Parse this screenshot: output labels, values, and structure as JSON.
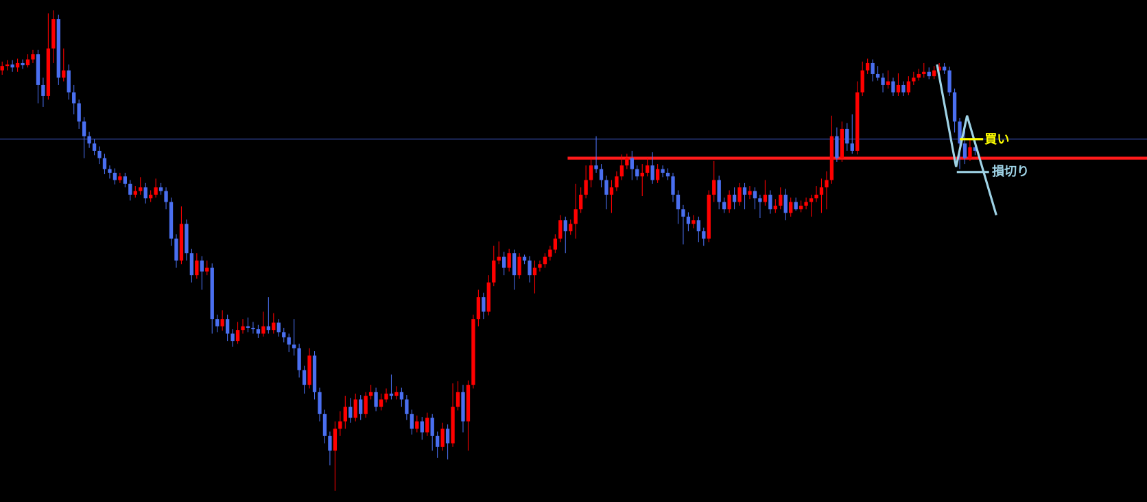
{
  "chart_data": {
    "type": "candlestick",
    "up_color": "#ff0000",
    "down_color": "#4a6ff0",
    "ylim": [
      0,
      686
    ],
    "hlines": [
      {
        "value": 496,
        "color": "#3b4fb8"
      },
      {
        "value": 470,
        "color": "#ff1a1a"
      }
    ],
    "annotations": [
      {
        "text": "買い",
        "color": "#ffff00"
      },
      {
        "text": "損切り",
        "color": "#9fd3e6"
      }
    ],
    "candles": [
      [
        590,
        602,
        584,
        596
      ],
      [
        596,
        604,
        590,
        598
      ],
      [
        598,
        604,
        588,
        594
      ],
      [
        594,
        606,
        588,
        600
      ],
      [
        600,
        605,
        592,
        597
      ],
      [
        597,
        612,
        594,
        605
      ],
      [
        605,
        618,
        600,
        612
      ],
      [
        612,
        618,
        545,
        570
      ],
      [
        570,
        580,
        540,
        555
      ],
      [
        555,
        668,
        550,
        620
      ],
      [
        620,
        672,
        600,
        660
      ],
      [
        660,
        666,
        570,
        580
      ],
      [
        580,
        620,
        575,
        590
      ],
      [
        590,
        598,
        550,
        560
      ],
      [
        560,
        570,
        530,
        545
      ],
      [
        545,
        550,
        510,
        520
      ],
      [
        520,
        526,
        470,
        500
      ],
      [
        500,
        506,
        484,
        490
      ],
      [
        490,
        496,
        474,
        480
      ],
      [
        480,
        486,
        462,
        470
      ],
      [
        470,
        476,
        448,
        455
      ],
      [
        455,
        460,
        442,
        450
      ],
      [
        450,
        456,
        434,
        440
      ],
      [
        440,
        450,
        436,
        445
      ],
      [
        445,
        450,
        430,
        435
      ],
      [
        435,
        440,
        412,
        420
      ],
      [
        420,
        432,
        416,
        425
      ],
      [
        425,
        444,
        420,
        430
      ],
      [
        430,
        436,
        408,
        415
      ],
      [
        415,
        426,
        410,
        420
      ],
      [
        420,
        442,
        416,
        430
      ],
      [
        430,
        436,
        420,
        425
      ],
      [
        425,
        430,
        400,
        410
      ],
      [
        410,
        416,
        350,
        360
      ],
      [
        360,
        366,
        320,
        330
      ],
      [
        330,
        404,
        325,
        380
      ],
      [
        380,
        386,
        330,
        340
      ],
      [
        340,
        346,
        300,
        310
      ],
      [
        310,
        340,
        305,
        330
      ],
      [
        330,
        336,
        290,
        315
      ],
      [
        315,
        330,
        310,
        320
      ],
      [
        320,
        326,
        230,
        250
      ],
      [
        250,
        256,
        232,
        240
      ],
      [
        240,
        262,
        234,
        250
      ],
      [
        250,
        256,
        220,
        230
      ],
      [
        230,
        236,
        212,
        220
      ],
      [
        220,
        246,
        216,
        235
      ],
      [
        235,
        250,
        230,
        240
      ],
      [
        240,
        252,
        232,
        238
      ],
      [
        238,
        246,
        230,
        236
      ],
      [
        236,
        242,
        224,
        230
      ],
      [
        230,
        260,
        226,
        240
      ],
      [
        240,
        280,
        230,
        235
      ],
      [
        235,
        258,
        230,
        245
      ],
      [
        245,
        250,
        226,
        232
      ],
      [
        232,
        238,
        218,
        225
      ],
      [
        225,
        230,
        205,
        215
      ],
      [
        215,
        250,
        200,
        210
      ],
      [
        210,
        216,
        170,
        180
      ],
      [
        180,
        186,
        148,
        160
      ],
      [
        160,
        210,
        155,
        200
      ],
      [
        200,
        206,
        140,
        150
      ],
      [
        150,
        156,
        110,
        120
      ],
      [
        120,
        126,
        80,
        90
      ],
      [
        90,
        96,
        50,
        70
      ],
      [
        70,
        110,
        15,
        100
      ],
      [
        100,
        124,
        90,
        110
      ],
      [
        110,
        145,
        100,
        130
      ],
      [
        130,
        142,
        108,
        115
      ],
      [
        115,
        148,
        110,
        140
      ],
      [
        140,
        146,
        112,
        120
      ],
      [
        120,
        150,
        115,
        145
      ],
      [
        145,
        160,
        140,
        150
      ],
      [
        150,
        156,
        124,
        130
      ],
      [
        130,
        148,
        125,
        140
      ],
      [
        140,
        155,
        136,
        148
      ],
      [
        148,
        174,
        140,
        145
      ],
      [
        145,
        158,
        140,
        150
      ],
      [
        150,
        156,
        130,
        140
      ],
      [
        140,
        146,
        112,
        120
      ],
      [
        120,
        126,
        92,
        100
      ],
      [
        100,
        118,
        95,
        110
      ],
      [
        110,
        116,
        85,
        95
      ],
      [
        95,
        122,
        90,
        115
      ],
      [
        115,
        120,
        70,
        90
      ],
      [
        90,
        96,
        60,
        75
      ],
      [
        75,
        108,
        70,
        100
      ],
      [
        100,
        106,
        58,
        80
      ],
      [
        80,
        162,
        75,
        130
      ],
      [
        130,
        165,
        125,
        150
      ],
      [
        150,
        160,
        95,
        110
      ],
      [
        110,
        166,
        70,
        160
      ],
      [
        160,
        256,
        155,
        250
      ],
      [
        250,
        290,
        240,
        280
      ],
      [
        280,
        286,
        250,
        260
      ],
      [
        260,
        310,
        255,
        300
      ],
      [
        300,
        350,
        295,
        330
      ],
      [
        330,
        356,
        325,
        335
      ],
      [
        335,
        342,
        310,
        320
      ],
      [
        320,
        346,
        315,
        340
      ],
      [
        340,
        345,
        290,
        310
      ],
      [
        310,
        340,
        305,
        335
      ],
      [
        335,
        338,
        325,
        330
      ],
      [
        330,
        336,
        300,
        310
      ],
      [
        310,
        330,
        285,
        320
      ],
      [
        320,
        330,
        315,
        325
      ],
      [
        325,
        340,
        320,
        335
      ],
      [
        335,
        350,
        330,
        345
      ],
      [
        345,
        366,
        340,
        360
      ],
      [
        360,
        392,
        355,
        385
      ],
      [
        385,
        390,
        340,
        370
      ],
      [
        370,
        386,
        365,
        380
      ],
      [
        380,
        435,
        360,
        400
      ],
      [
        400,
        430,
        395,
        420
      ],
      [
        420,
        460,
        415,
        440
      ],
      [
        440,
        470,
        430,
        460
      ],
      [
        460,
        500,
        450,
        455
      ],
      [
        455,
        462,
        430,
        440
      ],
      [
        440,
        446,
        400,
        420
      ],
      [
        420,
        440,
        395,
        430
      ],
      [
        430,
        452,
        425,
        445
      ],
      [
        445,
        475,
        440,
        460
      ],
      [
        460,
        476,
        455,
        470
      ],
      [
        470,
        480,
        440,
        455
      ],
      [
        455,
        460,
        440,
        445
      ],
      [
        445,
        462,
        418,
        450
      ],
      [
        450,
        470,
        445,
        460
      ],
      [
        460,
        478,
        435,
        440
      ],
      [
        440,
        462,
        436,
        455
      ],
      [
        455,
        460,
        444,
        450
      ],
      [
        450,
        456,
        440,
        445
      ],
      [
        445,
        450,
        410,
        420
      ],
      [
        420,
        426,
        380,
        400
      ],
      [
        400,
        406,
        352,
        390
      ],
      [
        390,
        396,
        370,
        380
      ],
      [
        380,
        392,
        374,
        385
      ],
      [
        385,
        390,
        355,
        370
      ],
      [
        370,
        375,
        350,
        360
      ],
      [
        360,
        426,
        355,
        420
      ],
      [
        420,
        466,
        410,
        440
      ],
      [
        440,
        446,
        400,
        410
      ],
      [
        410,
        416,
        395,
        400
      ],
      [
        400,
        426,
        395,
        420
      ],
      [
        420,
        430,
        400,
        410
      ],
      [
        410,
        436,
        405,
        430
      ],
      [
        430,
        436,
        400,
        420
      ],
      [
        420,
        432,
        414,
        425
      ],
      [
        425,
        430,
        400,
        415
      ],
      [
        415,
        420,
        388,
        410
      ],
      [
        410,
        440,
        405,
        420
      ],
      [
        420,
        426,
        394,
        400
      ],
      [
        400,
        414,
        395,
        405
      ],
      [
        405,
        430,
        400,
        420
      ],
      [
        420,
        428,
        385,
        395
      ],
      [
        395,
        416,
        390,
        410
      ],
      [
        410,
        416,
        398,
        400
      ],
      [
        400,
        412,
        396,
        405
      ],
      [
        405,
        416,
        400,
        410
      ],
      [
        410,
        420,
        390,
        415
      ],
      [
        415,
        432,
        410,
        420
      ],
      [
        420,
        442,
        395,
        430
      ],
      [
        430,
        452,
        400,
        440
      ],
      [
        440,
        528,
        435,
        500
      ],
      [
        500,
        512,
        465,
        470
      ],
      [
        470,
        520,
        465,
        510
      ],
      [
        510,
        518,
        480,
        490
      ],
      [
        490,
        530,
        476,
        480
      ],
      [
        480,
        575,
        475,
        560
      ],
      [
        560,
        602,
        555,
        590
      ],
      [
        590,
        606,
        585,
        600
      ],
      [
        600,
        605,
        575,
        585
      ],
      [
        585,
        596,
        576,
        580
      ],
      [
        580,
        586,
        560,
        570
      ],
      [
        570,
        590,
        565,
        575
      ],
      [
        575,
        580,
        555,
        560
      ],
      [
        560,
        586,
        555,
        570
      ],
      [
        570,
        575,
        555,
        560
      ],
      [
        560,
        582,
        556,
        575
      ],
      [
        575,
        588,
        570,
        580
      ],
      [
        580,
        592,
        576,
        585
      ],
      [
        585,
        600,
        580,
        588
      ],
      [
        588,
        594,
        578,
        582
      ],
      [
        582,
        596,
        578,
        590
      ],
      [
        590,
        600,
        586,
        595
      ],
      [
        595,
        600,
        585,
        590
      ],
      [
        590,
        595,
        555,
        560
      ],
      [
        560,
        565,
        505,
        520
      ],
      [
        520,
        525,
        455,
        490
      ],
      [
        490,
        515,
        462,
        470
      ],
      [
        470,
        495,
        466,
        485
      ],
      [
        485,
        490,
        474,
        480
      ]
    ]
  }
}
